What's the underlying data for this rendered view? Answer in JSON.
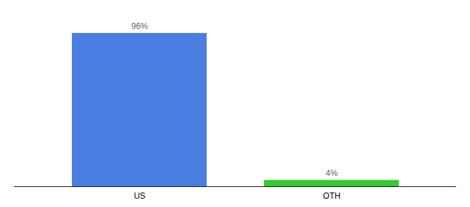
{
  "chart_data": {
    "type": "bar",
    "categories": [
      "US",
      "OTH"
    ],
    "values": [
      96,
      4
    ],
    "value_labels": [
      "96%",
      "4%"
    ],
    "colors": [
      "#4a7de0",
      "#33cc33"
    ],
    "ylim": [
      0,
      108
    ],
    "data_labels": true,
    "tick_labels": "x"
  }
}
